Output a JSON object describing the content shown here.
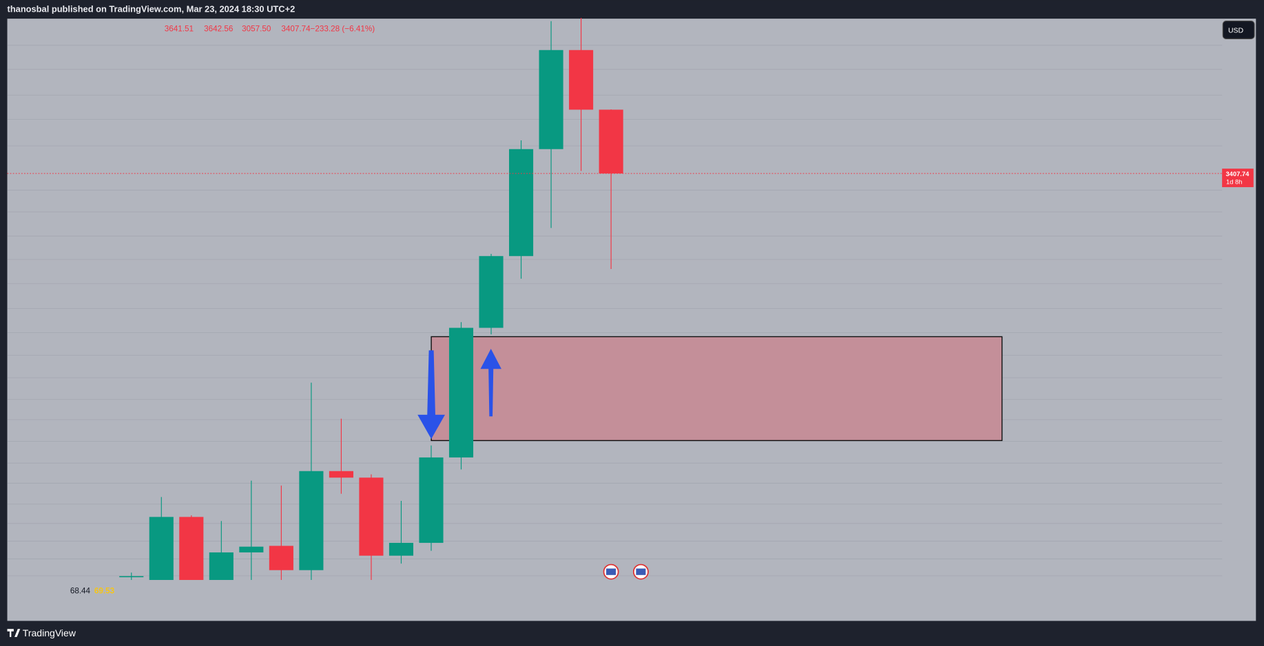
{
  "header": {
    "title": "thanosbal published on TradingView.com, Mar 23, 2024 18:30 UTC+2"
  },
  "chart_data": {
    "type": "candlestick",
    "ylim": [
      1768,
      3978
    ],
    "up_color": "#089981",
    "down_color": "#f23645",
    "legend": [
      "3641.51",
      "3642.56",
      "3057.50",
      "3407.74",
      "−233.28 (−6.41%)"
    ],
    "currency": "USD",
    "last_price": 3407.74,
    "countdown": "1d 8h",
    "indicator": [
      "68.44",
      "69.53"
    ],
    "candles": [
      {
        "open": 1928,
        "high": 1945,
        "low": 1918,
        "close": 1932
      },
      {
        "open": 1918,
        "high": 2222,
        "low": 1918,
        "close": 2149
      },
      {
        "open": 2149,
        "high": 2155,
        "low": 1918,
        "close": 1918
      },
      {
        "open": 1918,
        "high": 2134,
        "low": 1918,
        "close": 2019
      },
      {
        "open": 2019,
        "high": 2282,
        "low": 1918,
        "close": 2040
      },
      {
        "open": 2043,
        "high": 2264,
        "low": 1918,
        "close": 1954
      },
      {
        "open": 1954,
        "high": 2641,
        "low": 1918,
        "close": 2317
      },
      {
        "open": 2317,
        "high": 2509,
        "low": 2234,
        "close": 2293
      },
      {
        "open": 2293,
        "high": 2305,
        "low": 1918,
        "close": 2007
      },
      {
        "open": 2007,
        "high": 2208,
        "low": 1978,
        "close": 2054
      },
      {
        "open": 2054,
        "high": 2411,
        "low": 2025,
        "close": 2367
      },
      {
        "open": 2367,
        "high": 2863,
        "low": 2323,
        "close": 2842
      },
      {
        "open": 2842,
        "high": 3113,
        "low": 2818,
        "close": 3105
      },
      {
        "open": 3105,
        "high": 3529,
        "low": 3022,
        "close": 3497
      },
      {
        "open": 3497,
        "high": 3966,
        "low": 3208,
        "close": 3860
      },
      {
        "open": 3860,
        "high": 3978,
        "low": 3417,
        "close": 3641.5
      },
      {
        "open": 3641.51,
        "high": 3642.56,
        "low": 3057.5,
        "close": 3407.74
      }
    ]
  },
  "footer": {
    "brand": "TradingView"
  }
}
